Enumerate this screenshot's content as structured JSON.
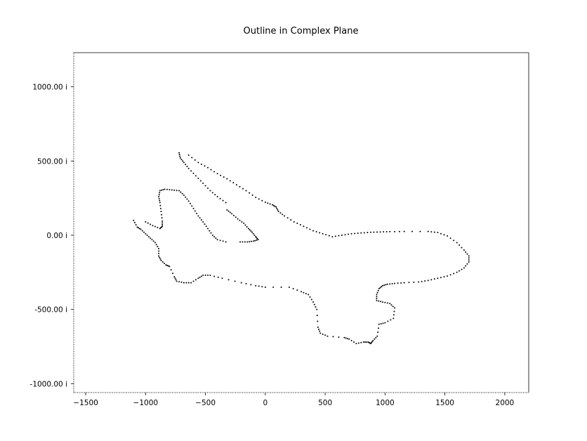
{
  "chart_data": {
    "type": "scatter",
    "title": "Outline in Complex Plane",
    "xlabel": "",
    "ylabel": "",
    "xlim": [
      -1600,
      2200
    ],
    "ylim": [
      -1060,
      1230
    ],
    "xticks": [
      -1500,
      -1000,
      -500,
      0,
      500,
      1000,
      1500,
      2000
    ],
    "xtick_labels": [
      "−1500",
      "−1000",
      "−500",
      "0",
      "500",
      "1000",
      "1500",
      "2000"
    ],
    "yticks": [
      1000,
      500,
      0,
      -500,
      -1000
    ],
    "ytick_labels": [
      "1000.00 i",
      "500.00 i",
      "0.00 i",
      "-500.00 i",
      "-1000.00 i"
    ],
    "grid": false,
    "legend": "none",
    "marker_color": "#000000",
    "paths": [
      {
        "name": "",
        "points": [
          [
            -640,
            540
          ],
          [
            -560,
            490
          ],
          [
            -480,
            455
          ],
          [
            -400,
            415
          ],
          [
            -320,
            380
          ],
          [
            -240,
            340
          ],
          [
            -160,
            300
          ],
          [
            -80,
            255
          ],
          [
            0,
            222
          ],
          [
            60,
            205
          ],
          [
            90,
            190
          ],
          [
            110,
            160
          ],
          [
            160,
            130
          ],
          [
            240,
            90
          ],
          [
            320,
            60
          ],
          [
            400,
            30
          ],
          [
            480,
            10
          ],
          [
            560,
            -10
          ],
          [
            640,
            0
          ],
          [
            720,
            10
          ],
          [
            800,
            15
          ],
          [
            880,
            20
          ],
          [
            960,
            22
          ],
          [
            1040,
            24
          ],
          [
            1160,
            25
          ],
          [
            1360,
            25
          ],
          [
            1440,
            18
          ],
          [
            1520,
            -5
          ],
          [
            1600,
            -50
          ],
          [
            1660,
            -100
          ],
          [
            1700,
            -140
          ],
          [
            1700,
            -180
          ],
          [
            1660,
            -220
          ],
          [
            1600,
            -250
          ],
          [
            1520,
            -275
          ],
          [
            1440,
            -290
          ],
          [
            1360,
            -305
          ],
          [
            1280,
            -315
          ],
          [
            1160,
            -320
          ],
          [
            1080,
            -325
          ],
          [
            1020,
            -330
          ],
          [
            980,
            -340
          ],
          [
            950,
            -360
          ],
          [
            930,
            -400
          ],
          [
            930,
            -440
          ],
          [
            980,
            -450
          ],
          [
            1040,
            -460
          ],
          [
            1080,
            -490
          ],
          [
            1070,
            -560
          ],
          [
            1000,
            -590
          ],
          [
            950,
            -600
          ],
          [
            935,
            -680
          ],
          [
            900,
            -710
          ],
          [
            880,
            -730
          ],
          [
            860,
            -720
          ],
          [
            820,
            -720
          ],
          [
            760,
            -730
          ],
          [
            700,
            -700
          ],
          [
            660,
            -690
          ],
          [
            520,
            -680
          ],
          [
            460,
            -660
          ],
          [
            440,
            -620
          ],
          [
            430,
            -500
          ],
          [
            400,
            -450
          ],
          [
            360,
            -400
          ],
          [
            300,
            -380
          ],
          [
            200,
            -350
          ],
          [
            0,
            -350
          ],
          [
            -80,
            -340
          ],
          [
            -200,
            -320
          ],
          [
            -360,
            -290
          ],
          [
            -460,
            -270
          ],
          [
            -520,
            -270
          ],
          [
            -560,
            -290
          ],
          [
            -620,
            -320
          ],
          [
            -680,
            -320
          ],
          [
            -740,
            -310
          ],
          [
            -760,
            -280
          ],
          [
            -800,
            -210
          ],
          [
            -830,
            -200
          ],
          [
            -870,
            -170
          ],
          [
            -890,
            -140
          ],
          [
            -890,
            -90
          ],
          [
            -920,
            -50
          ],
          [
            -960,
            -20
          ],
          [
            -1000,
            10
          ],
          [
            -1040,
            40
          ],
          [
            -1070,
            55
          ],
          [
            -1100,
            100
          ]
        ]
      },
      {
        "name": "",
        "points": [
          [
            -1000,
            90
          ],
          [
            -940,
            65
          ],
          [
            -880,
            45
          ],
          [
            -860,
            60
          ],
          [
            -860,
            95
          ],
          [
            -870,
            160
          ],
          [
            -880,
            220
          ],
          [
            -890,
            260
          ],
          [
            -880,
            300
          ],
          [
            -840,
            310
          ],
          [
            -780,
            305
          ],
          [
            -720,
            300
          ],
          [
            -680,
            270
          ],
          [
            -640,
            230
          ],
          [
            -600,
            180
          ],
          [
            -560,
            130
          ],
          [
            -520,
            90
          ],
          [
            -480,
            45
          ],
          [
            -440,
            0
          ],
          [
            -400,
            -30
          ],
          [
            -330,
            -45
          ]
        ]
      },
      {
        "name": "",
        "points": [
          [
            -720,
            555
          ],
          [
            -710,
            520
          ],
          [
            -680,
            490
          ],
          [
            -640,
            450
          ],
          [
            -580,
            400
          ],
          [
            -520,
            350
          ],
          [
            -460,
            300
          ],
          [
            -400,
            260
          ],
          [
            -330,
            220
          ]
        ]
      },
      {
        "name": "",
        "points": [
          [
            -320,
            170
          ],
          [
            -280,
            145
          ],
          [
            -230,
            110
          ],
          [
            -180,
            80
          ],
          [
            -140,
            45
          ],
          [
            -110,
            20
          ],
          [
            -80,
            -10
          ],
          [
            -60,
            -30
          ],
          [
            -100,
            -40
          ],
          [
            -150,
            -45
          ],
          [
            -210,
            -45
          ]
        ]
      }
    ]
  }
}
